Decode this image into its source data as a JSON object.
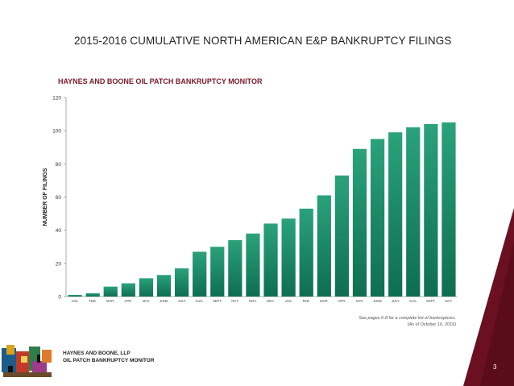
{
  "slide": {
    "title": "2015-2016 CUMULATIVE NORTH AMERICAN E&P BANKRUPTCY FILINGS",
    "page_number": "3"
  },
  "note": {
    "line1": "See pages 6-8 for a complete list of bankruptcies.",
    "line2": "(As of October 19, 2016)"
  },
  "footer": {
    "line1": "HAYNES AND BOONE, LLP",
    "line2": "OIL PATCH BANKRUPTCY MONITOR"
  },
  "colors": {
    "bar_top": "#2aa27a",
    "bar_bottom": "#0e6e50",
    "accent_maroon": "#6b1020",
    "title_maroon": "#7a1a2a"
  },
  "chart_data": {
    "type": "bar",
    "title": "HAYNES AND BOONE OIL PATCH BANKRUPTCY MONITOR",
    "xlabel": "",
    "ylabel": "NUMBER OF FILINGS",
    "categories": [
      "JAN.",
      "FEB.",
      "MAR.",
      "APR.",
      "MAY",
      "JUNE",
      "JULY",
      "AUG.",
      "SEPT.",
      "OCT.",
      "NOV.",
      "DEC.",
      "JAN.",
      "FEB.",
      "MAR.",
      "APR.",
      "MAY",
      "JUNE",
      "JULY",
      "AUG.",
      "SEPT.",
      "OCT."
    ],
    "values": [
      1,
      2,
      6,
      8,
      11,
      13,
      17,
      27,
      30,
      34,
      38,
      44,
      47,
      53,
      61,
      73,
      89,
      95,
      99,
      102,
      104,
      105
    ],
    "ylim": [
      0,
      120
    ],
    "yticks": [
      0,
      20,
      40,
      60,
      80,
      100,
      120
    ],
    "grid": false,
    "legend": "none"
  }
}
